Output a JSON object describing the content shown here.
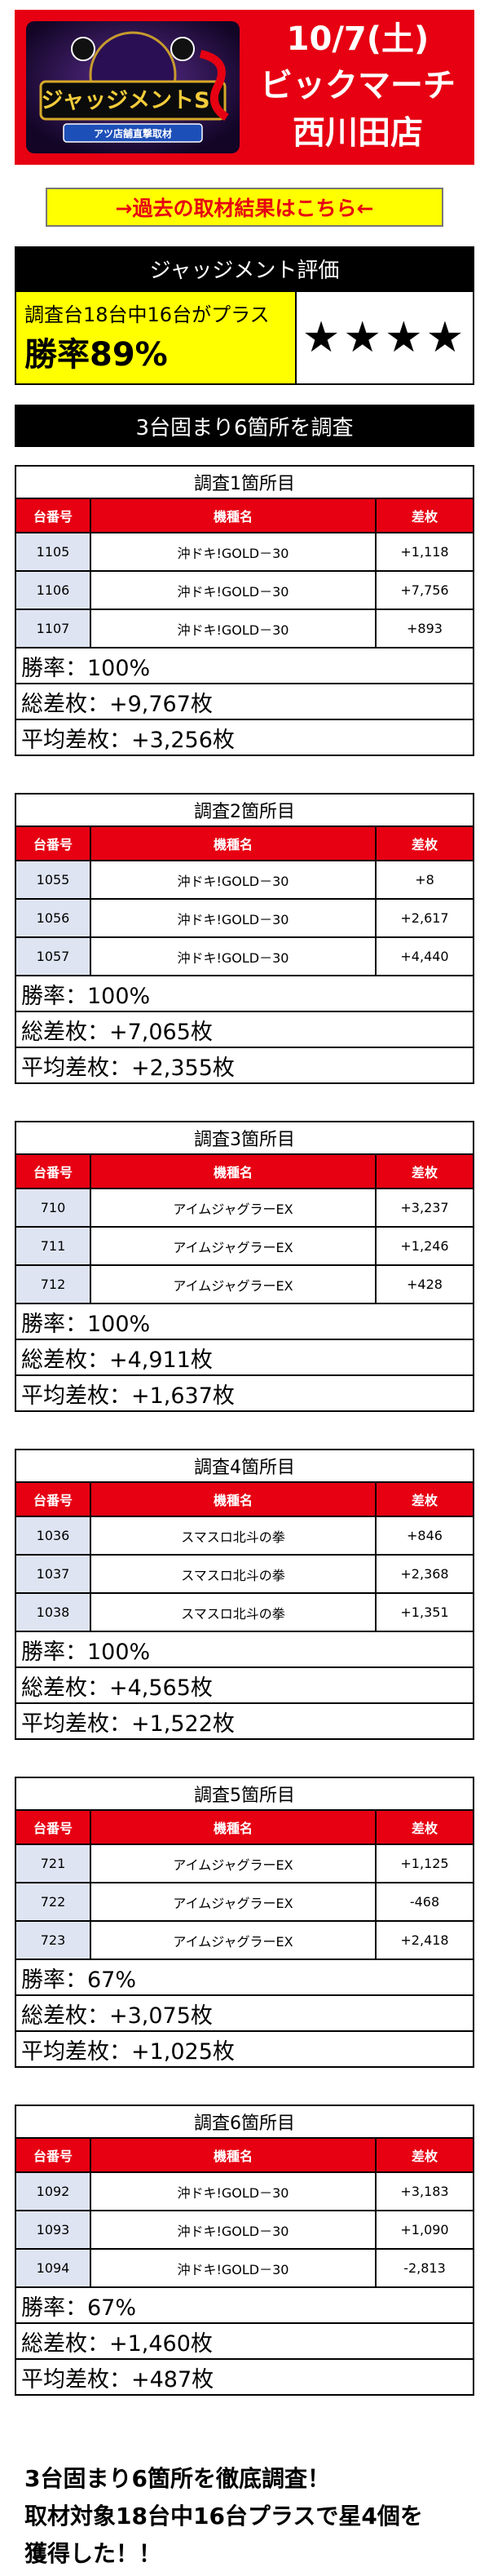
{
  "header": {
    "logo_text": "ジャッジメントS",
    "logo_sub": "アツ店舗直撃取材",
    "date": "10/7(土)",
    "store": "ビックマーチ",
    "branch": "西川田店"
  },
  "past_link": "→過去の取材結果はこちら←",
  "judgement": {
    "title": "ジャッジメント評価",
    "summary": "調査台18台中16台がプラス",
    "rate": "勝率89%",
    "stars": "★★★★"
  },
  "survey_title": "3台固まり6箇所を調査",
  "table_headers": [
    "台番号",
    "機種名",
    "差枚"
  ],
  "blocks": [
    {
      "title": "調査1箇所目",
      "rows": [
        {
          "num": "1105",
          "model": "沖ドキ!GOLD－30",
          "diff": "+1,118"
        },
        {
          "num": "1106",
          "model": "沖ドキ!GOLD－30",
          "diff": "+7,756"
        },
        {
          "num": "1107",
          "model": "沖ドキ!GOLD－30",
          "diff": "+893"
        }
      ],
      "win_rate": "勝率：100%",
      "total": "総差枚：+9,767枚",
      "avg": "平均差枚：+3,256枚"
    },
    {
      "title": "調査2箇所目",
      "rows": [
        {
          "num": "1055",
          "model": "沖ドキ!GOLD－30",
          "diff": "+8"
        },
        {
          "num": "1056",
          "model": "沖ドキ!GOLD－30",
          "diff": "+2,617"
        },
        {
          "num": "1057",
          "model": "沖ドキ!GOLD－30",
          "diff": "+4,440"
        }
      ],
      "win_rate": "勝率：100%",
      "total": "総差枚：+7,065枚",
      "avg": "平均差枚：+2,355枚"
    },
    {
      "title": "調査3箇所目",
      "rows": [
        {
          "num": "710",
          "model": "アイムジャグラーEX",
          "diff": "+3,237"
        },
        {
          "num": "711",
          "model": "アイムジャグラーEX",
          "diff": "+1,246"
        },
        {
          "num": "712",
          "model": "アイムジャグラーEX",
          "diff": "+428"
        }
      ],
      "win_rate": "勝率：100%",
      "total": "総差枚：+4,911枚",
      "avg": "平均差枚：+1,637枚"
    },
    {
      "title": "調査4箇所目",
      "rows": [
        {
          "num": "1036",
          "model": "スマスロ北斗の拳",
          "diff": "+846"
        },
        {
          "num": "1037",
          "model": "スマスロ北斗の拳",
          "diff": "+2,368"
        },
        {
          "num": "1038",
          "model": "スマスロ北斗の拳",
          "diff": "+1,351"
        }
      ],
      "win_rate": "勝率：100%",
      "total": "総差枚：+4,565枚",
      "avg": "平均差枚：+1,522枚"
    },
    {
      "title": "調査5箇所目",
      "rows": [
        {
          "num": "721",
          "model": "アイムジャグラーEX",
          "diff": "+1,125"
        },
        {
          "num": "722",
          "model": "アイムジャグラーEX",
          "diff": "-468"
        },
        {
          "num": "723",
          "model": "アイムジャグラーEX",
          "diff": "+2,418"
        }
      ],
      "win_rate": "勝率：67%",
      "total": "総差枚：+3,075枚",
      "avg": "平均差枚：+1,025枚"
    },
    {
      "title": "調査6箇所目",
      "rows": [
        {
          "num": "1092",
          "model": "沖ドキ!GOLD－30",
          "diff": "+3,183"
        },
        {
          "num": "1093",
          "model": "沖ドキ!GOLD－30",
          "diff": "+1,090"
        },
        {
          "num": "1094",
          "model": "沖ドキ!GOLD－30",
          "diff": "-2,813"
        }
      ],
      "win_rate": "勝率：67%",
      "total": "総差枚：+1,460枚",
      "avg": "平均差枚：+487枚"
    }
  ],
  "footer": {
    "line1": "3台固まり6箇所を徹底調査！",
    "line2": "取材対象18台中16台プラスで星4個を",
    "line3": "獲得した！！"
  },
  "colors": {
    "brand_red": "#e60012",
    "highlight_yellow": "#ffff00",
    "number_cell": "#dfe4f2"
  }
}
